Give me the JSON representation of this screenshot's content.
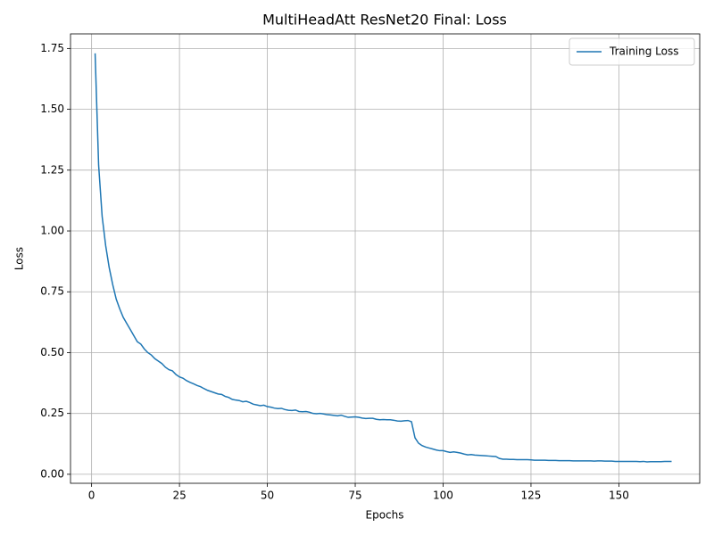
{
  "chart_data": {
    "type": "line",
    "title": "MultiHeadAtt ResNet20 Final: Loss",
    "xlabel": "Epochs",
    "ylabel": "Loss",
    "x": [
      1,
      2,
      3,
      4,
      5,
      6,
      7,
      8,
      9,
      10,
      11,
      12,
      13,
      14,
      15,
      16,
      17,
      18,
      19,
      20,
      21,
      22,
      23,
      24,
      25,
      26,
      27,
      28,
      29,
      30,
      31,
      32,
      33,
      34,
      35,
      36,
      37,
      38,
      39,
      40,
      41,
      42,
      43,
      44,
      45,
      46,
      47,
      48,
      49,
      50,
      51,
      52,
      53,
      54,
      55,
      56,
      57,
      58,
      59,
      60,
      61,
      62,
      63,
      64,
      65,
      66,
      67,
      68,
      69,
      70,
      71,
      72,
      73,
      74,
      75,
      76,
      77,
      78,
      79,
      80,
      81,
      82,
      83,
      84,
      85,
      86,
      87,
      88,
      89,
      90,
      91,
      92,
      93,
      94,
      95,
      96,
      97,
      98,
      99,
      100,
      101,
      102,
      103,
      104,
      105,
      106,
      107,
      108,
      109,
      110,
      111,
      112,
      113,
      114,
      115,
      116,
      117,
      118,
      119,
      120,
      121,
      122,
      123,
      124,
      125,
      126,
      127,
      128,
      129,
      130,
      131,
      132,
      133,
      134,
      135,
      136,
      137,
      138,
      139,
      140,
      141,
      142,
      143,
      144,
      145,
      146,
      147,
      148,
      149,
      150,
      151,
      152,
      153,
      154,
      155,
      156,
      157,
      158,
      159,
      160,
      161,
      162,
      163,
      164,
      165
    ],
    "series": [
      {
        "name": "Training Loss",
        "color": "#1f77b4",
        "values": [
          1.73,
          1.27,
          1.06,
          0.94,
          0.85,
          0.78,
          0.72,
          0.68,
          0.645,
          0.62,
          0.595,
          0.57,
          0.545,
          0.535,
          0.515,
          0.5,
          0.49,
          0.475,
          0.465,
          0.455,
          0.44,
          0.43,
          0.425,
          0.41,
          0.4,
          0.395,
          0.385,
          0.378,
          0.372,
          0.365,
          0.36,
          0.352,
          0.345,
          0.34,
          0.335,
          0.33,
          0.328,
          0.32,
          0.316,
          0.308,
          0.305,
          0.303,
          0.298,
          0.3,
          0.295,
          0.288,
          0.285,
          0.282,
          0.284,
          0.278,
          0.276,
          0.272,
          0.27,
          0.271,
          0.266,
          0.263,
          0.262,
          0.264,
          0.258,
          0.257,
          0.258,
          0.255,
          0.25,
          0.249,
          0.25,
          0.248,
          0.245,
          0.244,
          0.242,
          0.24,
          0.243,
          0.238,
          0.234,
          0.235,
          0.236,
          0.234,
          0.231,
          0.229,
          0.23,
          0.23,
          0.226,
          0.224,
          0.225,
          0.224,
          0.224,
          0.222,
          0.219,
          0.218,
          0.22,
          0.221,
          0.216,
          0.15,
          0.128,
          0.118,
          0.112,
          0.108,
          0.104,
          0.1,
          0.097,
          0.097,
          0.093,
          0.09,
          0.092,
          0.09,
          0.087,
          0.083,
          0.08,
          0.081,
          0.079,
          0.078,
          0.077,
          0.076,
          0.075,
          0.074,
          0.073,
          0.065,
          0.062,
          0.062,
          0.061,
          0.061,
          0.06,
          0.06,
          0.06,
          0.06,
          0.059,
          0.058,
          0.058,
          0.058,
          0.058,
          0.057,
          0.057,
          0.057,
          0.056,
          0.056,
          0.056,
          0.056,
          0.055,
          0.055,
          0.055,
          0.055,
          0.055,
          0.055,
          0.054,
          0.055,
          0.055,
          0.054,
          0.054,
          0.054,
          0.053,
          0.053,
          0.053,
          0.053,
          0.053,
          0.053,
          0.053,
          0.052,
          0.053,
          0.051,
          0.052,
          0.052,
          0.052,
          0.052,
          0.053,
          0.053,
          0.053
        ]
      }
    ],
    "xlim": [
      -6,
      173
    ],
    "xticks": [
      0,
      25,
      50,
      75,
      100,
      125,
      150
    ],
    "ylim": [
      -0.037,
      1.81
    ],
    "yticks": [
      {
        "value": 0,
        "label": "0.00"
      },
      {
        "value": 0.25,
        "label": "0.25"
      },
      {
        "value": 0.5,
        "label": "0.50"
      },
      {
        "value": 0.75,
        "label": "0.75"
      },
      {
        "value": 1,
        "label": "1.00"
      },
      {
        "value": 1.25,
        "label": "1.25"
      },
      {
        "value": 1.5,
        "label": "1.50"
      },
      {
        "value": 1.75,
        "label": "1.75"
      }
    ],
    "grid": true,
    "legend": "upper-right"
  }
}
